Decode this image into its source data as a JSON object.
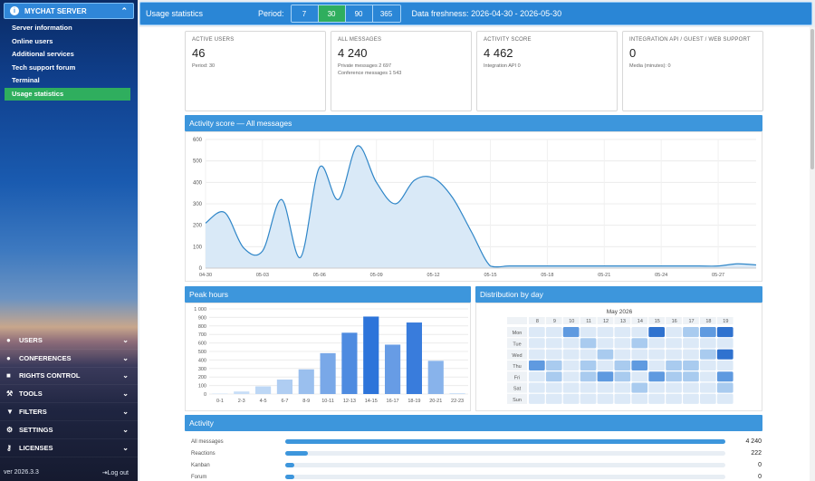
{
  "sidebar": {
    "header": "MYCHAT SERVER",
    "items": [
      {
        "label": "Server information"
      },
      {
        "label": "Online users"
      },
      {
        "label": "Additional services"
      },
      {
        "label": "Tech support forum"
      },
      {
        "label": "Terminal"
      },
      {
        "label": "Usage statistics",
        "active": true
      }
    ],
    "sections": [
      {
        "label": "USERS",
        "icon": "users-icon"
      },
      {
        "label": "CONFERENCES",
        "icon": "conferences-icon"
      },
      {
        "label": "RIGHTS CONTROL",
        "icon": "rights-icon"
      },
      {
        "label": "TOOLS",
        "icon": "wrench-icon"
      },
      {
        "label": "FILTERS",
        "icon": "filter-icon"
      },
      {
        "label": "SETTINGS",
        "icon": "gear-icon"
      },
      {
        "label": "LICENSES",
        "icon": "key-icon"
      }
    ],
    "version": "ver 2026.3.3",
    "logout": "Log out"
  },
  "topbar": {
    "title": "Usage statistics",
    "period_label": "Period:",
    "periods": [
      "7",
      "30",
      "90",
      "365"
    ],
    "selected_period": "30",
    "freshness": "Data freshness: 2026-04-30 - 2026-05-30"
  },
  "cards": [
    {
      "label": "ACTIVE USERS",
      "value": "46",
      "lines": [
        "Period: 30"
      ]
    },
    {
      "label": "ALL MESSAGES",
      "value": "4 240",
      "lines": [
        "Private messages 2 697",
        "Conference messages 1 543"
      ]
    },
    {
      "label": "ACTIVITY SCORE",
      "value": "4 462",
      "lines": [
        "Integration API 0"
      ]
    },
    {
      "label": "INTEGRATION API / GUEST / WEB SUPPORT",
      "value": "0",
      "lines": [
        "Media (minutes): 0"
      ]
    }
  ],
  "activity_chart": {
    "title": "Activity score — All messages",
    "chart_data": {
      "type": "area",
      "x": [
        "04-30",
        "05-01",
        "05-02",
        "05-03",
        "05-04",
        "05-05",
        "05-06",
        "05-07",
        "05-08",
        "05-09",
        "05-10",
        "05-11",
        "05-12",
        "05-13",
        "05-14",
        "05-15",
        "05-16",
        "05-17",
        "05-18",
        "05-19",
        "05-20",
        "05-21",
        "05-22",
        "05-23",
        "05-24",
        "05-25",
        "05-26",
        "05-27",
        "05-28",
        "05-29"
      ],
      "y": [
        210,
        260,
        95,
        80,
        320,
        50,
        470,
        320,
        570,
        400,
        300,
        410,
        420,
        330,
        170,
        10,
        10,
        10,
        10,
        10,
        10,
        10,
        10,
        10,
        10,
        10,
        10,
        10,
        20,
        15
      ],
      "x_ticks": [
        "04-30",
        "05-03",
        "05-06",
        "05-09",
        "05-12",
        "05-15",
        "05-18",
        "05-21",
        "05-24",
        "05-27"
      ],
      "ylim": [
        0,
        600
      ],
      "y_ticks": [
        "0",
        "100",
        "200",
        "300",
        "400",
        "500",
        "600"
      ],
      "color": "#2f86c8",
      "fill": "#d9e9f7",
      "grid": true
    }
  },
  "peak_hours": {
    "title": "Peak hours",
    "chart_data": {
      "type": "bar",
      "categories": [
        "0-1",
        "2-3",
        "4-5",
        "6-7",
        "8-9",
        "10-11",
        "12-13",
        "14-15",
        "16-17",
        "18-19",
        "20-21",
        "22-23"
      ],
      "values": [
        5,
        30,
        90,
        170,
        290,
        480,
        720,
        910,
        580,
        840,
        390,
        10
      ],
      "ylim": [
        0,
        1000
      ],
      "y_ticks": [
        "0",
        "100",
        "200",
        "300",
        "400",
        "500",
        "600",
        "700",
        "800",
        "900",
        "1 000"
      ],
      "grid": true
    }
  },
  "distribution": {
    "title": "Distribution by day",
    "month": "May 2026",
    "columns": [
      "8",
      "9",
      "10",
      "11",
      "12",
      "13",
      "14",
      "15",
      "16",
      "17",
      "18",
      "19"
    ],
    "rows": [
      "Mon",
      "Tue",
      "Wed",
      "Thu",
      "Fri",
      "Sat",
      "Sun"
    ],
    "levels": [
      [
        1,
        1,
        3,
        1,
        1,
        1,
        1,
        4,
        1,
        2,
        3,
        4
      ],
      [
        1,
        1,
        1,
        2,
        1,
        1,
        2,
        1,
        1,
        1,
        1,
        1
      ],
      [
        1,
        1,
        1,
        1,
        2,
        1,
        1,
        1,
        1,
        1,
        2,
        4
      ],
      [
        3,
        2,
        1,
        2,
        1,
        2,
        3,
        1,
        2,
        2,
        1,
        1
      ],
      [
        1,
        2,
        1,
        2,
        3,
        2,
        1,
        3,
        2,
        2,
        1,
        3
      ],
      [
        1,
        1,
        1,
        1,
        1,
        1,
        2,
        1,
        1,
        1,
        1,
        2
      ],
      [
        1,
        1,
        1,
        1,
        1,
        1,
        1,
        1,
        1,
        1,
        1,
        1
      ]
    ]
  },
  "activity": {
    "title": "Activity",
    "rows": [
      {
        "label": "All messages",
        "value": "4 240",
        "fraction": 1.0
      },
      {
        "label": "Reactions",
        "value": "222",
        "fraction": 0.052
      },
      {
        "label": "Kanban",
        "value": "0",
        "fraction": 0.02
      },
      {
        "label": "Forum",
        "value": "0",
        "fraction": 0.02
      }
    ]
  }
}
